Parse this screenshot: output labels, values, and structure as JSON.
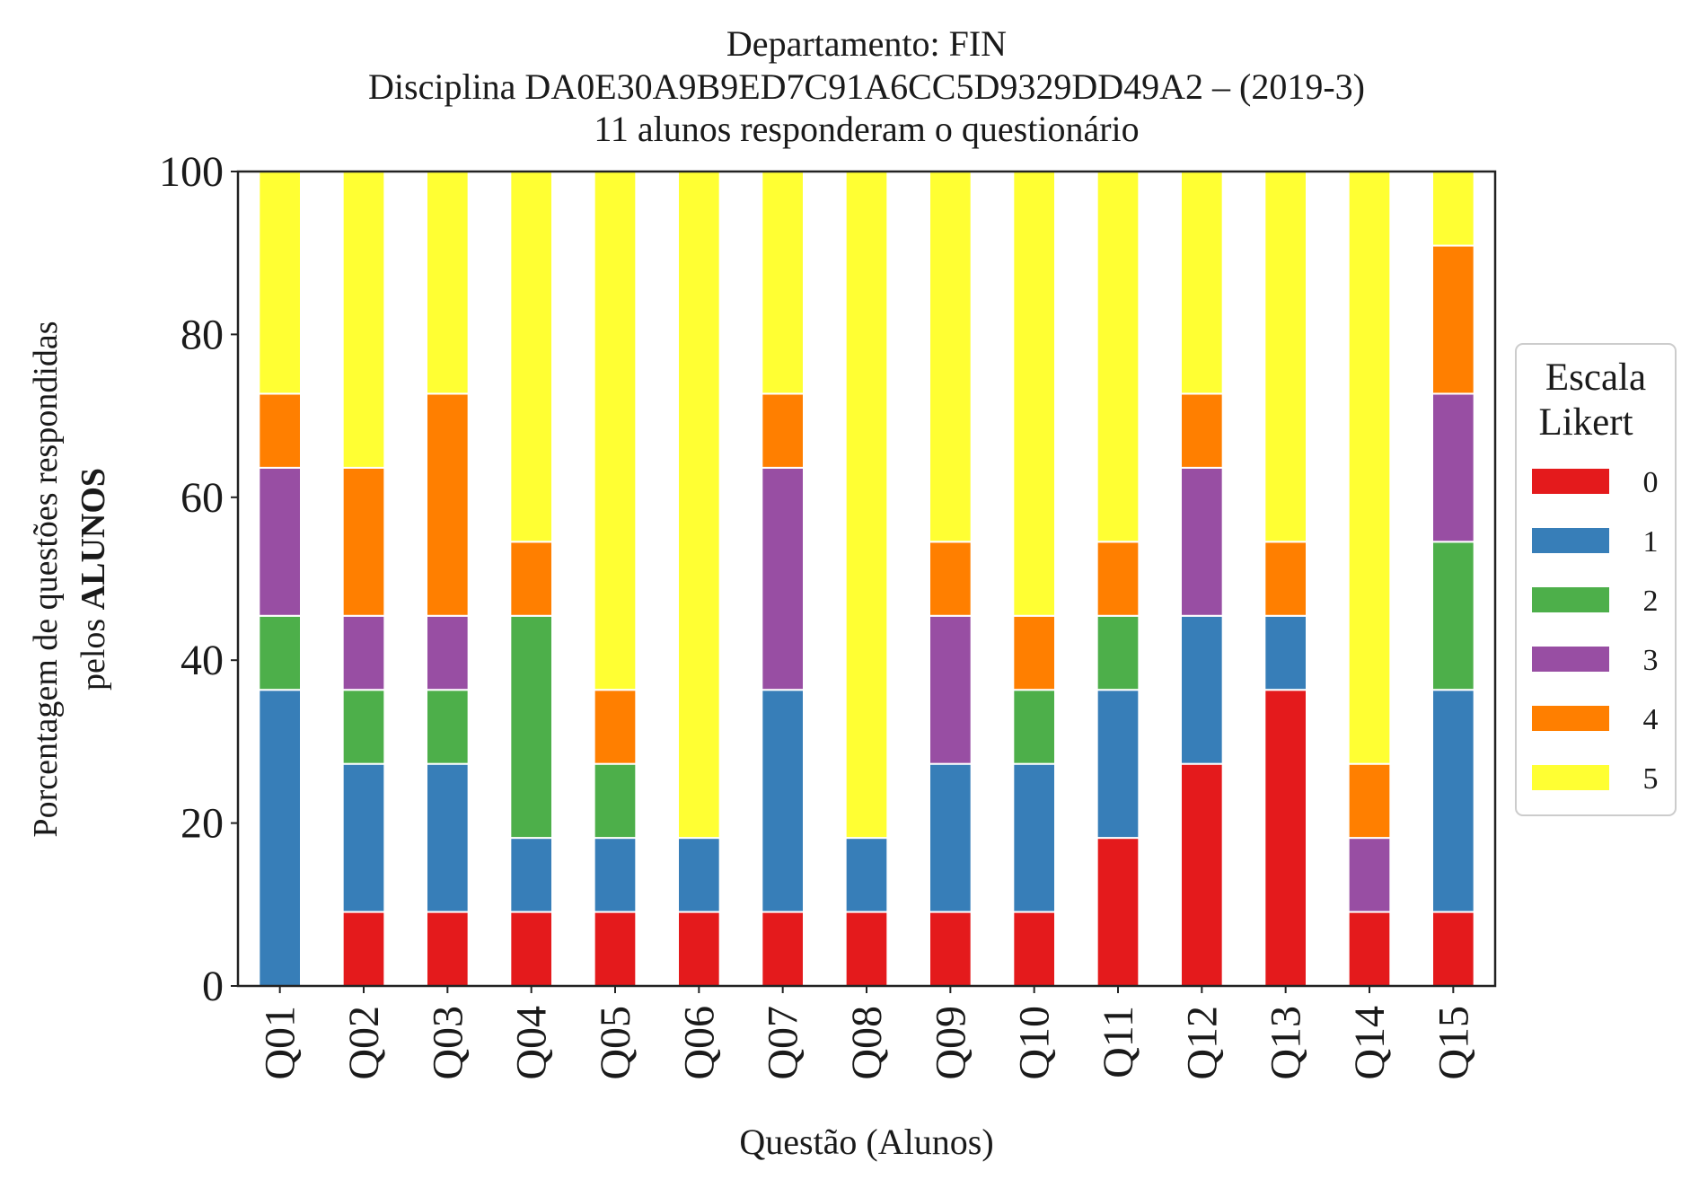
{
  "chart_data": {
    "type": "bar",
    "stacked": true,
    "title": [
      "Departamento: FIN",
      "Disciplina DA0E30A9B9ED7C91A6CC5D9329DD49A2 – (2019-3)",
      "11 alunos responderam o questionário"
    ],
    "xlabel": "Questão (Alunos)",
    "ylabel": {
      "line1": "Porcentagem de questões respondidas",
      "line2_prefix": "pelos ",
      "line2_bold": "ALUNOS"
    },
    "ylim": [
      0,
      100
    ],
    "yticks": [
      0,
      20,
      40,
      60,
      80,
      100
    ],
    "grid": false,
    "legend": {
      "title_line1": "Escala",
      "title_line2": "Likert",
      "placement": "right"
    },
    "categories": [
      "Q01",
      "Q02",
      "Q03",
      "Q04",
      "Q05",
      "Q06",
      "Q07",
      "Q08",
      "Q09",
      "Q10",
      "Q11",
      "Q12",
      "Q13",
      "Q14",
      "Q15"
    ],
    "series": [
      {
        "name": "0",
        "color": "#e41a1c",
        "values": [
          0,
          9.09,
          9.09,
          9.09,
          9.09,
          9.09,
          9.09,
          9.09,
          9.09,
          9.09,
          18.18,
          27.27,
          36.36,
          9.09,
          9.09
        ]
      },
      {
        "name": "1",
        "color": "#377eb8",
        "values": [
          36.36,
          18.18,
          18.18,
          9.09,
          9.09,
          9.09,
          27.27,
          9.09,
          18.18,
          18.18,
          18.18,
          18.18,
          9.09,
          0,
          27.27
        ]
      },
      {
        "name": "2",
        "color": "#4daf4a",
        "values": [
          9.09,
          9.09,
          9.09,
          27.27,
          9.09,
          0,
          0,
          0,
          0,
          9.09,
          9.09,
          0,
          0,
          0,
          18.18
        ]
      },
      {
        "name": "3",
        "color": "#984ea3",
        "values": [
          18.18,
          9.09,
          9.09,
          0,
          0,
          0,
          27.27,
          0,
          18.18,
          0,
          0,
          18.18,
          0,
          9.09,
          18.18
        ]
      },
      {
        "name": "4",
        "color": "#ff7f00",
        "values": [
          9.09,
          18.18,
          27.27,
          9.09,
          9.09,
          0,
          9.09,
          0,
          9.09,
          9.09,
          9.09,
          9.09,
          9.09,
          9.09,
          18.18
        ]
      },
      {
        "name": "5",
        "color": "#ffff33",
        "values": [
          27.27,
          36.36,
          27.27,
          45.45,
          63.64,
          81.82,
          27.27,
          81.82,
          45.45,
          54.55,
          45.45,
          27.27,
          45.45,
          72.73,
          9.09
        ]
      }
    ]
  }
}
